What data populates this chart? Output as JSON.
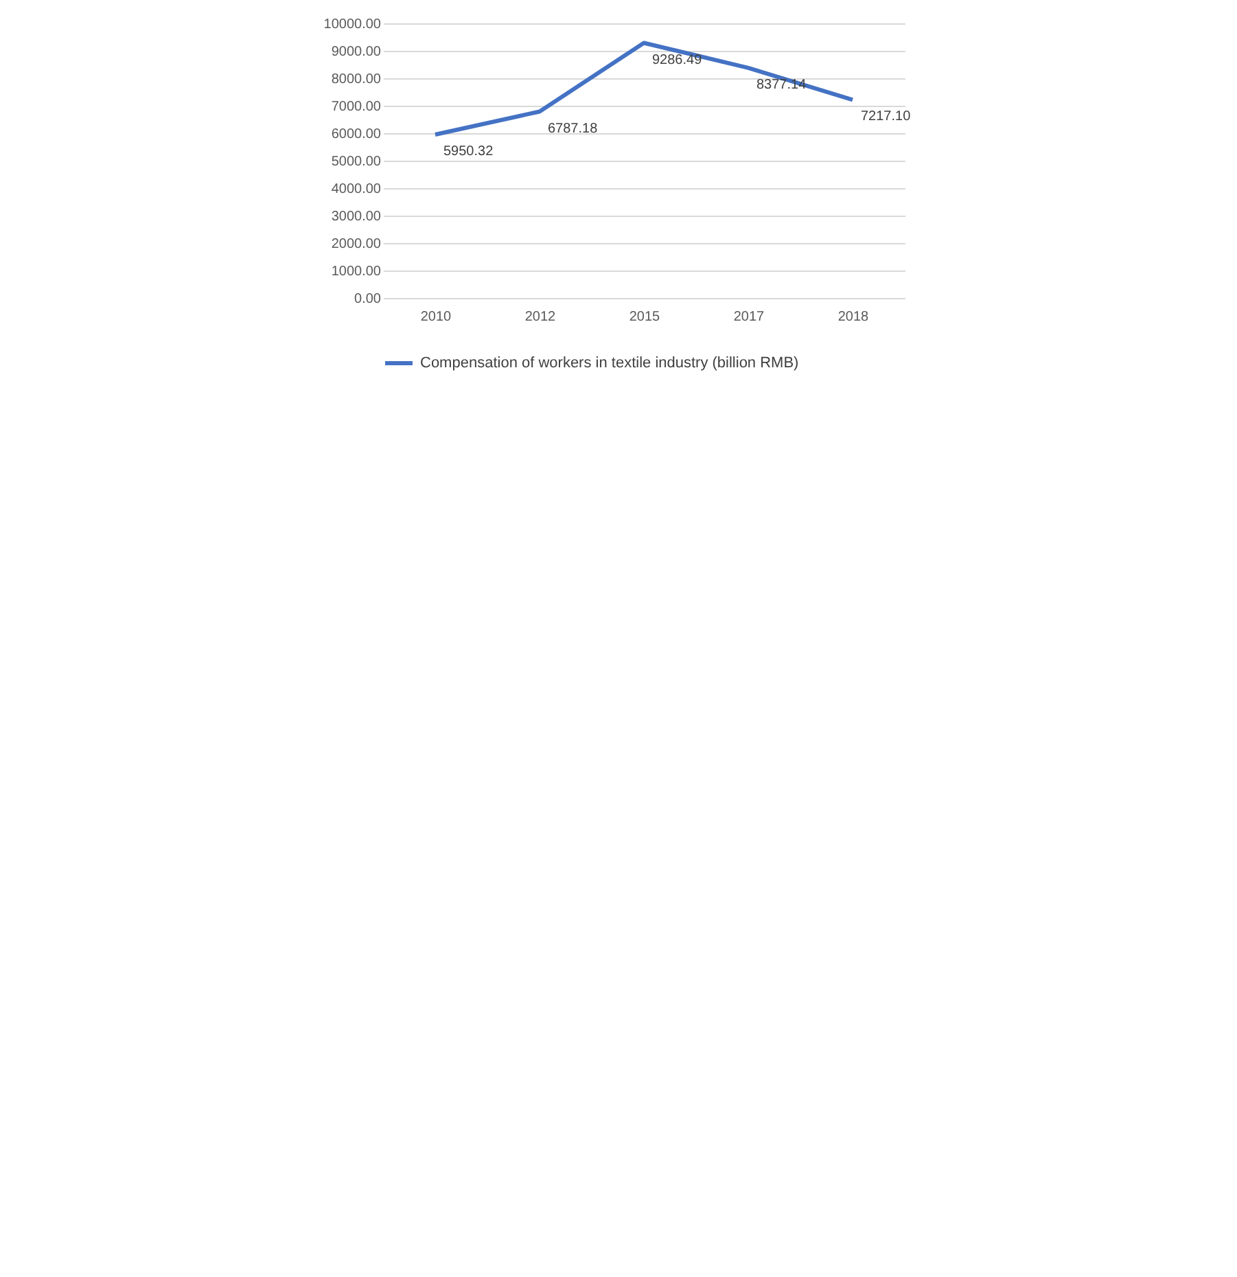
{
  "chart_data": {
    "type": "line",
    "categories": [
      "2010",
      "2012",
      "2015",
      "2017",
      "2018"
    ],
    "series": [
      {
        "name": "Compensation of workers in textile industry (billion RMB)",
        "color": "#4472c4",
        "values": [
          5950.32,
          6787.18,
          9286.49,
          8377.14,
          7217.1
        ],
        "value_labels": [
          "5950.32",
          "6787.18",
          "9286.49",
          "8377.14",
          "7217.10"
        ]
      }
    ],
    "ylim": [
      0,
      10000
    ],
    "yticks": [
      {
        "value": 0,
        "label": "0.00"
      },
      {
        "value": 1000,
        "label": "1000.00"
      },
      {
        "value": 2000,
        "label": "2000.00"
      },
      {
        "value": 3000,
        "label": "3000.00"
      },
      {
        "value": 4000,
        "label": "4000.00"
      },
      {
        "value": 5000,
        "label": "5000.00"
      },
      {
        "value": 6000,
        "label": "6000.00"
      },
      {
        "value": 7000,
        "label": "7000.00"
      },
      {
        "value": 8000,
        "label": "8000.00"
      },
      {
        "value": 9000,
        "label": "9000.00"
      },
      {
        "value": 10000,
        "label": "10000.00"
      }
    ],
    "grid": "y",
    "legend": "bottom",
    "marker": "none",
    "line_style": "solid"
  }
}
